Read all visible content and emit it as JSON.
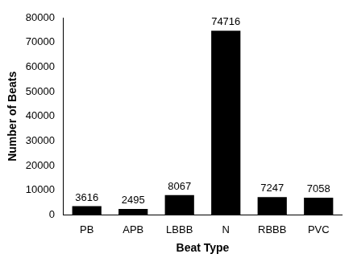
{
  "chart_data": {
    "type": "bar",
    "x_label": "Beat Type",
    "y_label": "Number of Beats",
    "categories": [
      "PB",
      "APB",
      "LBBB",
      "N",
      "RBBB",
      "PVC"
    ],
    "values": [
      3616,
      2495,
      8067,
      74716,
      7247,
      7058
    ],
    "color": "#000000",
    "ylim": [
      0,
      80000
    ],
    "yticks": [
      0,
      10000,
      20000,
      30000,
      40000,
      50000,
      60000,
      70000,
      80000
    ],
    "grid": false,
    "data_labels": true
  }
}
